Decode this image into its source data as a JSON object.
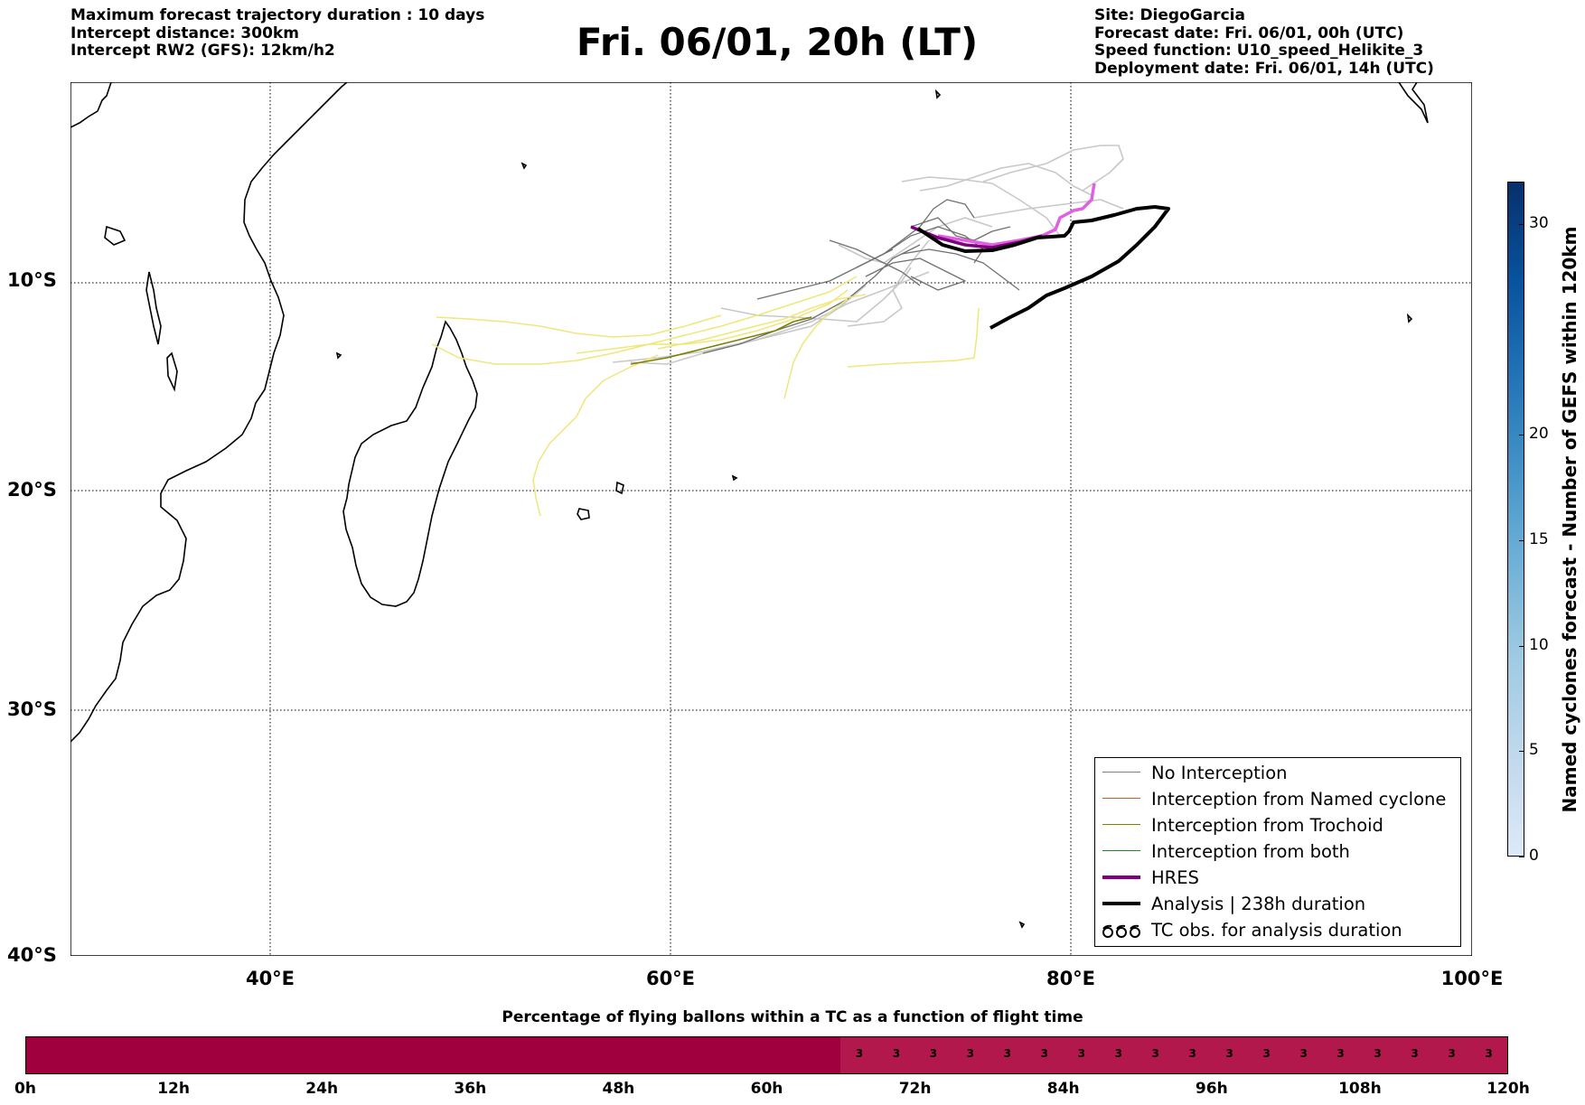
{
  "header": {
    "left": [
      "Maximum forecast trajectory duration : 10 days",
      "Intercept distance: 300km",
      "Intercept RW2 (GFS):  12km/h2"
    ],
    "title": "Fri. 06/01, 20h (LT)",
    "right": [
      "Site: DiegoGarcia",
      "Forecast date: Fri. 06/01, 00h (UTC)",
      "Speed function: U10_speed_Helikite_3",
      "Deployment date: Fri. 06/01, 14h (UTC)"
    ]
  },
  "map": {
    "lon_range": [
      30,
      100
    ],
    "lat_range": [
      -40,
      0
    ],
    "lat_labels": [
      "10°S",
      "20°S",
      "30°S",
      "40°S"
    ],
    "lon_labels": [
      "40°E",
      "60°E",
      "80°E",
      "100°E"
    ],
    "grid": "dotted"
  },
  "legend": {
    "items": [
      {
        "label": "No Interception",
        "color": "#7f7f7f"
      },
      {
        "label": "Interception from Named cyclone",
        "color": "#e8501c"
      },
      {
        "label": "Interception from Trochoid",
        "color": "#808000"
      },
      {
        "label": "Interception from both",
        "color": "#1a8c1a"
      },
      {
        "label": "HRES",
        "color": "#800080"
      },
      {
        "label": "Analysis | 238h duration",
        "color": "#000000"
      },
      {
        "label": "TC obs. for analysis duration",
        "color": "#000000",
        "icon": "cyclone-symbol-icon"
      }
    ]
  },
  "colorbar": {
    "label": "Named cyclones forecast - Number of GEFS within 120km",
    "ticks": [
      "0",
      "5",
      "10",
      "15",
      "20",
      "30"
    ],
    "max": 32
  },
  "progress": {
    "title": "Percentage of flying ballons within a TC as a function of flight time",
    "tick_labels": [
      "0h",
      "12h",
      "24h",
      "36h",
      "48h",
      "60h",
      "72h",
      "84h",
      "96h",
      "108h",
      "120h"
    ],
    "value_label": "3",
    "value_start_hour": 66
  },
  "colors": {
    "ensemble_gray": "#c8c8c8",
    "ensemble_dark": "#707070",
    "ensemble_yellow": "#efe77a",
    "hres": "#800080",
    "hres_light": "#e060e0",
    "analysis": "#000000"
  }
}
